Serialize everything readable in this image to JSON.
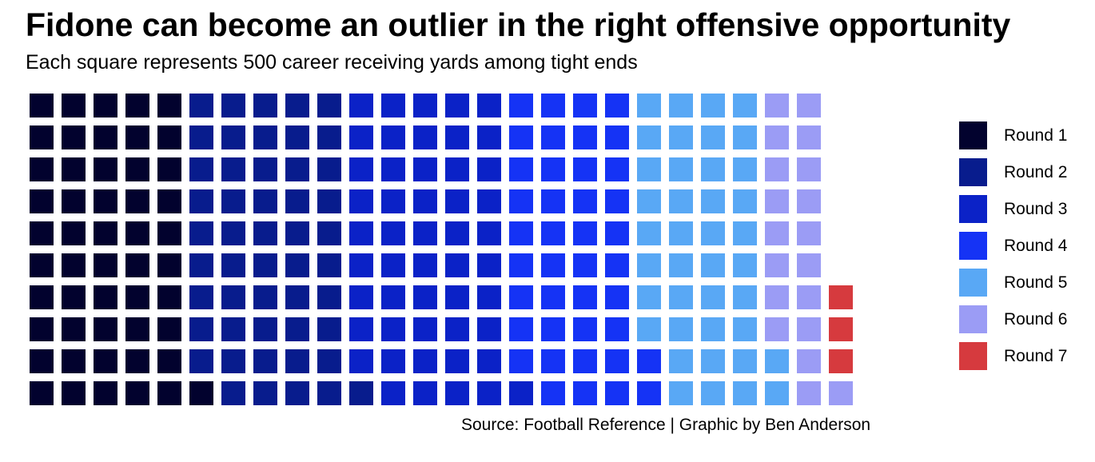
{
  "chart_data": {
    "type": "waffle",
    "title": "Fidone can become an outlier in the right offensive opportunity",
    "subtitle": "Each square represents 500 career receiving yards among tight ends",
    "caption": "Source: Football Reference | Graphic by Ben Anderson",
    "unit": "500 career receiving yards per square",
    "rows": 10,
    "fill_order": "column-wise, bottom to top, left to right",
    "legend_placement": "right",
    "categories": [
      "Round 1",
      "Round 2",
      "Round 3",
      "Round 4",
      "Round 5",
      "Round 6",
      "Round 7"
    ],
    "colors": [
      "#02022e",
      "#081c8d",
      "#0b22c7",
      "#1533f5",
      "#59a8f5",
      "#9b9cf5",
      "#d63a3e"
    ],
    "values": [
      51,
      50,
      50,
      41,
      40,
      19,
      3
    ]
  }
}
